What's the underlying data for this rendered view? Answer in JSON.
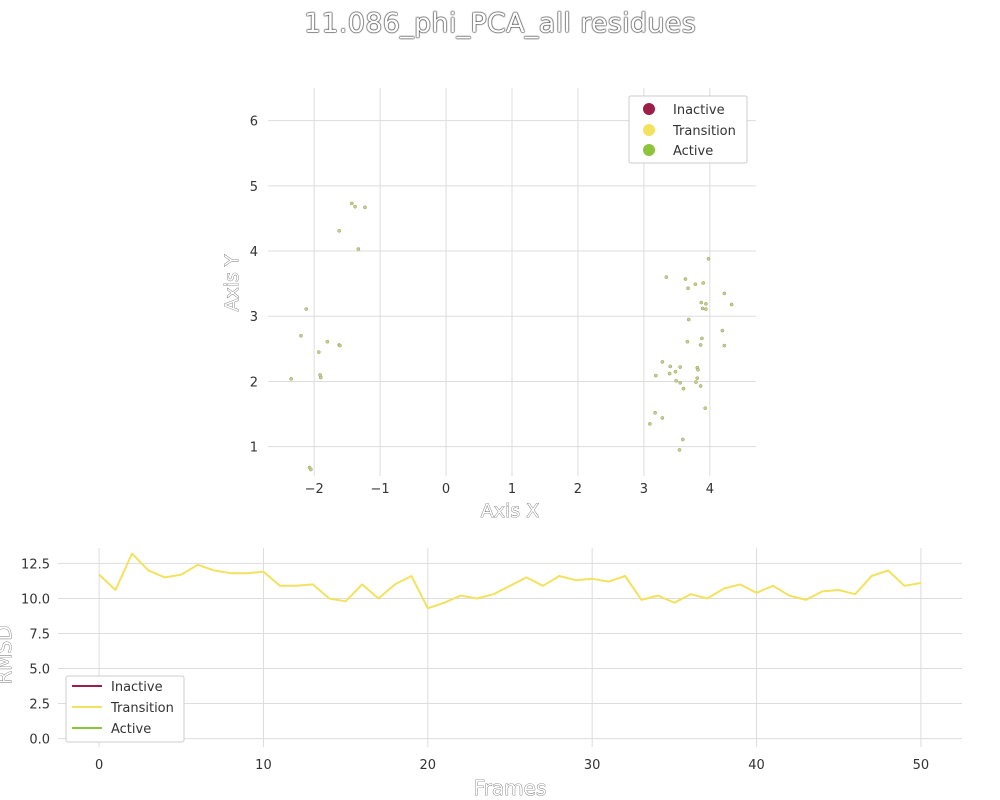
{
  "title": "11.086_phi_PCA_all residues",
  "colors": {
    "inactive": "#9b1d48",
    "transition": "#f2e25f",
    "active": "#8cc43c",
    "grid": "#dddddd",
    "point_fill": "#c8cf8a",
    "point_stroke": "#9a9f6a"
  },
  "chart_data": [
    {
      "type": "scatter",
      "xlabel": "Axis X",
      "ylabel": "Axis Y",
      "xlim": [
        -2.7,
        4.7
      ],
      "ylim": [
        0.55,
        6.5
      ],
      "xticks": [
        -2,
        -1,
        0,
        1,
        2,
        3,
        4
      ],
      "xtick_labels": [
        "−2",
        "−1",
        "0",
        "1",
        "2",
        "3",
        "4"
      ],
      "yticks": [
        1,
        2,
        3,
        4,
        5,
        6
      ],
      "ytick_labels": [
        "1",
        "2",
        "3",
        "4",
        "5",
        "6"
      ],
      "grid": true,
      "legend_position": "top-right",
      "legend": [
        "Inactive",
        "Transition",
        "Active"
      ],
      "points": [
        {
          "x": -1.43,
          "y": 4.73
        },
        {
          "x": -1.38,
          "y": 4.68
        },
        {
          "x": -1.23,
          "y": 4.67
        },
        {
          "x": -1.62,
          "y": 4.31
        },
        {
          "x": -1.33,
          "y": 4.03
        },
        {
          "x": -2.12,
          "y": 3.11
        },
        {
          "x": -2.2,
          "y": 2.7
        },
        {
          "x": -1.8,
          "y": 2.61
        },
        {
          "x": -1.62,
          "y": 2.56
        },
        {
          "x": -1.61,
          "y": 2.55
        },
        {
          "x": -1.93,
          "y": 2.45
        },
        {
          "x": -1.91,
          "y": 2.1
        },
        {
          "x": -1.9,
          "y": 2.06
        },
        {
          "x": -2.35,
          "y": 2.04
        },
        {
          "x": -2.07,
          "y": 0.68
        },
        {
          "x": -2.05,
          "y": 0.65
        },
        {
          "x": 3.98,
          "y": 3.88
        },
        {
          "x": 3.34,
          "y": 3.6
        },
        {
          "x": 3.63,
          "y": 3.57
        },
        {
          "x": 3.9,
          "y": 3.51
        },
        {
          "x": 3.78,
          "y": 3.49
        },
        {
          "x": 3.67,
          "y": 3.43
        },
        {
          "x": 4.22,
          "y": 3.35
        },
        {
          "x": 3.87,
          "y": 3.21
        },
        {
          "x": 3.94,
          "y": 3.19
        },
        {
          "x": 4.33,
          "y": 3.18
        },
        {
          "x": 3.89,
          "y": 3.12
        },
        {
          "x": 3.94,
          "y": 3.11
        },
        {
          "x": 3.68,
          "y": 2.95
        },
        {
          "x": 4.19,
          "y": 2.78
        },
        {
          "x": 3.88,
          "y": 2.66
        },
        {
          "x": 3.66,
          "y": 2.61
        },
        {
          "x": 3.86,
          "y": 2.56
        },
        {
          "x": 4.22,
          "y": 2.55
        },
        {
          "x": 3.28,
          "y": 2.3
        },
        {
          "x": 3.4,
          "y": 2.23
        },
        {
          "x": 3.55,
          "y": 2.22
        },
        {
          "x": 3.81,
          "y": 2.21
        },
        {
          "x": 3.82,
          "y": 2.18
        },
        {
          "x": 3.48,
          "y": 2.15
        },
        {
          "x": 3.39,
          "y": 2.12
        },
        {
          "x": 3.18,
          "y": 2.09
        },
        {
          "x": 3.81,
          "y": 2.05
        },
        {
          "x": 3.49,
          "y": 2.01
        },
        {
          "x": 3.79,
          "y": 1.99
        },
        {
          "x": 3.55,
          "y": 1.98
        },
        {
          "x": 3.86,
          "y": 1.93
        },
        {
          "x": 3.6,
          "y": 1.89
        },
        {
          "x": 3.93,
          "y": 1.59
        },
        {
          "x": 3.17,
          "y": 1.52
        },
        {
          "x": 3.28,
          "y": 1.44
        },
        {
          "x": 3.09,
          "y": 1.35
        },
        {
          "x": 3.59,
          "y": 1.11
        },
        {
          "x": 3.54,
          "y": 0.95
        }
      ]
    },
    {
      "type": "line",
      "xlabel": "Frames",
      "ylabel": "RMSD",
      "xlim": [
        -2.5,
        52.5
      ],
      "ylim": [
        -0.6,
        13.6
      ],
      "xticks": [
        0,
        10,
        20,
        30,
        40,
        50
      ],
      "xtick_labels": [
        "0",
        "10",
        "20",
        "30",
        "40",
        "50"
      ],
      "yticks": [
        0,
        2.5,
        5,
        7.5,
        10,
        12.5
      ],
      "ytick_labels": [
        "0.0",
        "2.5",
        "5.0",
        "7.5",
        "10.0",
        "12.5"
      ],
      "grid": true,
      "legend_position": "bottom-left",
      "legend": [
        "Inactive",
        "Transition",
        "Active"
      ],
      "series": [
        {
          "name": "Transition",
          "x": [
            0,
            1,
            2,
            3,
            4,
            5,
            6,
            7,
            8,
            9,
            10,
            11,
            12,
            13,
            14,
            15,
            16,
            17,
            18,
            19,
            20,
            21,
            22,
            23,
            24,
            25,
            26,
            27,
            28,
            29,
            30,
            31,
            32,
            33,
            34,
            35,
            36,
            37,
            38,
            39,
            40,
            41,
            42,
            43,
            44,
            45,
            46,
            47,
            48,
            49,
            50
          ],
          "values": [
            11.7,
            10.6,
            13.2,
            12.0,
            11.5,
            11.7,
            12.4,
            12.0,
            11.8,
            11.8,
            11.9,
            10.9,
            10.9,
            11.0,
            10.0,
            9.8,
            11.0,
            10.0,
            11.0,
            11.6,
            9.3,
            9.7,
            10.2,
            10.0,
            10.3,
            10.9,
            11.5,
            10.9,
            11.6,
            11.3,
            11.4,
            11.2,
            11.6,
            9.9,
            10.2,
            9.7,
            10.3,
            10.0,
            10.7,
            11.0,
            10.4,
            10.9,
            10.2,
            9.9,
            10.5,
            10.6,
            10.3,
            11.6,
            12.0,
            10.9,
            11.1
          ]
        }
      ]
    }
  ]
}
